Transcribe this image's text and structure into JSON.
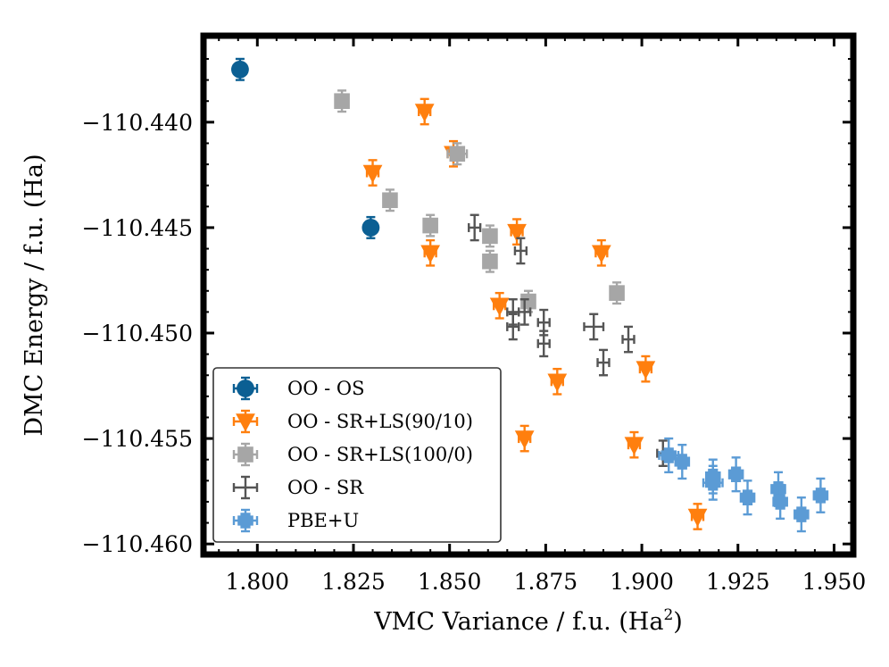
{
  "chart_data": {
    "type": "scatter",
    "title": "",
    "xlabel": "VMC Variance / f.u. (Ha",
    "xlabel_sup": "2",
    "xlabel_end": ")",
    "ylabel": "DMC Energy / f.u. (Ha)",
    "xlim": [
      1.786,
      1.955
    ],
    "ylim": [
      -110.4605,
      -110.4359
    ],
    "x_ticks": [
      1.8,
      1.825,
      1.85,
      1.875,
      1.9,
      1.925,
      1.95
    ],
    "x_tick_labels": [
      "1.800",
      "1.825",
      "1.850",
      "1.875",
      "1.900",
      "1.925",
      "1.950"
    ],
    "y_ticks": [
      -110.44,
      -110.445,
      -110.45,
      -110.455,
      -110.46
    ],
    "y_tick_labels": [
      "−110.440",
      "−110.445",
      "−110.450",
      "−110.455",
      "−110.460"
    ],
    "grid": false,
    "legend_position": "lower-left",
    "series": [
      {
        "name": "OO - OS",
        "marker": "circle",
        "color": "#0b5f93",
        "points": [
          {
            "x": 1.7955,
            "y": -110.4375,
            "xerr": 0.0015,
            "yerr": 0.0005
          },
          {
            "x": 1.8295,
            "y": -110.445,
            "xerr": 0.0015,
            "yerr": 0.0005
          }
        ]
      },
      {
        "name": "OO - SR+LS(90/10)",
        "marker": "triangle-down",
        "color": "#ff7f0e",
        "points": [
          {
            "x": 1.8435,
            "y": -110.4395,
            "xerr": 0.0015,
            "yerr": 0.0006
          },
          {
            "x": 1.83,
            "y": -110.4424,
            "xerr": 0.0015,
            "yerr": 0.0006
          },
          {
            "x": 1.851,
            "y": -110.4415,
            "xerr": 0.0015,
            "yerr": 0.0006
          },
          {
            "x": 1.845,
            "y": -110.4462,
            "xerr": 0.0015,
            "yerr": 0.0006
          },
          {
            "x": 1.8675,
            "y": -110.4452,
            "xerr": 0.0015,
            "yerr": 0.0006
          },
          {
            "x": 1.8895,
            "y": -110.4462,
            "xerr": 0.0015,
            "yerr": 0.0006
          },
          {
            "x": 1.863,
            "y": -110.4487,
            "xerr": 0.0015,
            "yerr": 0.0006
          },
          {
            "x": 1.878,
            "y": -110.4523,
            "xerr": 0.0015,
            "yerr": 0.0006
          },
          {
            "x": 1.901,
            "y": -110.4517,
            "xerr": 0.0015,
            "yerr": 0.0006
          },
          {
            "x": 1.8695,
            "y": -110.455,
            "xerr": 0.0015,
            "yerr": 0.0006
          },
          {
            "x": 1.898,
            "y": -110.4553,
            "xerr": 0.0015,
            "yerr": 0.0006
          },
          {
            "x": 1.9145,
            "y": -110.4587,
            "xerr": 0.0015,
            "yerr": 0.0006
          }
        ]
      },
      {
        "name": "OO - SR+LS(100/0)",
        "marker": "square",
        "color": "#a6a6a6",
        "points": [
          {
            "x": 1.822,
            "y": -110.439,
            "xerr": 0.0015,
            "yerr": 0.0005
          },
          {
            "x": 1.852,
            "y": -110.4415,
            "xerr": 0.0025,
            "yerr": 0.0005
          },
          {
            "x": 1.8345,
            "y": -110.4437,
            "xerr": 0.0015,
            "yerr": 0.0005
          },
          {
            "x": 1.845,
            "y": -110.4449,
            "xerr": 0.0015,
            "yerr": 0.0005
          },
          {
            "x": 1.8605,
            "y": -110.4454,
            "xerr": 0.0015,
            "yerr": 0.0005
          },
          {
            "x": 1.8605,
            "y": -110.4466,
            "xerr": 0.0015,
            "yerr": 0.0005
          },
          {
            "x": 1.8935,
            "y": -110.4481,
            "xerr": 0.0015,
            "yerr": 0.0005
          },
          {
            "x": 1.8705,
            "y": -110.4485,
            "xerr": 0.0015,
            "yerr": 0.0005
          }
        ]
      },
      {
        "name": "OO - SR",
        "marker": "none",
        "color": "#555555",
        "points": [
          {
            "x": 1.8565,
            "y": -110.445,
            "xerr": 0.0015,
            "yerr": 0.0006
          },
          {
            "x": 1.8685,
            "y": -110.4461,
            "xerr": 0.0015,
            "yerr": 0.0006
          },
          {
            "x": 1.8665,
            "y": -110.449,
            "xerr": 0.0015,
            "yerr": 0.0006
          },
          {
            "x": 1.8695,
            "y": -110.449,
            "xerr": 0.0015,
            "yerr": 0.0006
          },
          {
            "x": 1.8665,
            "y": -110.4497,
            "xerr": 0.0015,
            "yerr": 0.0006
          },
          {
            "x": 1.8745,
            "y": -110.4495,
            "xerr": 0.0015,
            "yerr": 0.0006
          },
          {
            "x": 1.8745,
            "y": -110.4505,
            "xerr": 0.0015,
            "yerr": 0.0006
          },
          {
            "x": 1.8875,
            "y": -110.4497,
            "xerr": 0.0025,
            "yerr": 0.0006
          },
          {
            "x": 1.8965,
            "y": -110.4503,
            "xerr": 0.0015,
            "yerr": 0.0006
          },
          {
            "x": 1.89,
            "y": -110.4514,
            "xerr": 0.0015,
            "yerr": 0.0006
          },
          {
            "x": 1.9055,
            "y": -110.4557,
            "xerr": 0.0015,
            "yerr": 0.0006
          }
        ]
      },
      {
        "name": "PBE+U",
        "marker": "plus",
        "color": "#5b9bd5",
        "points": [
          {
            "x": 1.907,
            "y": -110.4558,
            "xerr": 0.0025,
            "yerr": 0.0008
          },
          {
            "x": 1.9105,
            "y": -110.4561,
            "xerr": 0.0015,
            "yerr": 0.0008
          },
          {
            "x": 1.9185,
            "y": -110.4568,
            "xerr": 0.0015,
            "yerr": 0.0008
          },
          {
            "x": 1.9245,
            "y": -110.4567,
            "xerr": 0.0015,
            "yerr": 0.0008
          },
          {
            "x": 1.9185,
            "y": -110.4571,
            "xerr": 0.0025,
            "yerr": 0.0008
          },
          {
            "x": 1.9275,
            "y": -110.4578,
            "xerr": 0.0015,
            "yerr": 0.0008
          },
          {
            "x": 1.9355,
            "y": -110.4574,
            "xerr": 0.0015,
            "yerr": 0.0008
          },
          {
            "x": 1.936,
            "y": -110.458,
            "xerr": 0.0015,
            "yerr": 0.0008
          },
          {
            "x": 1.9415,
            "y": -110.4586,
            "xerr": 0.0015,
            "yerr": 0.0008
          },
          {
            "x": 1.9465,
            "y": -110.4577,
            "xerr": 0.0015,
            "yerr": 0.0008
          }
        ]
      }
    ]
  }
}
